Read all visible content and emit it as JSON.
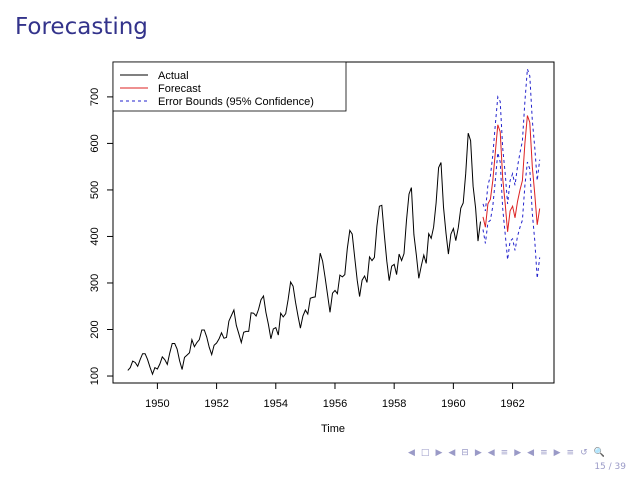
{
  "slide": {
    "title": "Forecasting",
    "page_number": "15 / 39"
  },
  "navigation": {
    "icons": [
      "◀",
      "□",
      "▶",
      "◀",
      "⊟",
      "▶",
      "◀",
      "≡",
      "▶",
      "◀",
      "≡",
      "▶",
      "≡",
      "↺",
      "🔍"
    ]
  },
  "colors": {
    "title": "#33338b",
    "actual": "#000000",
    "forecast": "#dd2222",
    "bounds": "#2222cc",
    "navigation": "#9a9ac7"
  },
  "chart_data": {
    "type": "line",
    "xlabel": "Time",
    "ylabel": "",
    "x_ticks": [
      1950,
      1952,
      1954,
      1956,
      1958,
      1960,
      1962
    ],
    "y_ticks": [
      100,
      200,
      300,
      400,
      500,
      600,
      700
    ],
    "xlim": [
      1948.5,
      1963.4
    ],
    "ylim": [
      85,
      775
    ],
    "legend_position": "top-left",
    "legend": [
      "Actual",
      "Forecast",
      "Error Bounds (95% Confidence)"
    ],
    "actual": {
      "name": "Actual",
      "start": 1949.0,
      "step": 0.0833333,
      "values": [
        112,
        118,
        132,
        129,
        121,
        135,
        148,
        148,
        136,
        119,
        104,
        118,
        115,
        126,
        141,
        135,
        125,
        149,
        170,
        170,
        158,
        133,
        114,
        140,
        145,
        150,
        178,
        163,
        172,
        178,
        199,
        199,
        184,
        162,
        146,
        166,
        171,
        180,
        193,
        181,
        183,
        218,
        230,
        242,
        209,
        191,
        172,
        194,
        196,
        196,
        236,
        235,
        229,
        243,
        264,
        272,
        237,
        211,
        180,
        201,
        204,
        188,
        235,
        227,
        234,
        264,
        302,
        293,
        259,
        229,
        203,
        229,
        242,
        233,
        267,
        269,
        270,
        315,
        364,
        347,
        312,
        274,
        237,
        278,
        284,
        277,
        317,
        313,
        318,
        374,
        413,
        405,
        355,
        306,
        271,
        306,
        315,
        301,
        356,
        348,
        355,
        422,
        465,
        467,
        404,
        347,
        305,
        336,
        340,
        318,
        362,
        348,
        363,
        435,
        491,
        505,
        404,
        359,
        310,
        337,
        360,
        342,
        406,
        396,
        420,
        472,
        548,
        559,
        463,
        407,
        362,
        405,
        417,
        391,
        419,
        461,
        472,
        535,
        622,
        606,
        508,
        461,
        390,
        432
      ]
    },
    "forecast": {
      "name": "Forecast",
      "start": 1961.0,
      "step": 0.0833333,
      "values": [
        442,
        420,
        470,
        480,
        520,
        580,
        640,
        625,
        525,
        470,
        410,
        455,
        465,
        440,
        475,
        500,
        520,
        600,
        660,
        645,
        550,
        490,
        425,
        460
      ]
    },
    "upper_bound": {
      "name": "Error Bounds (95% Confidence)",
      "start": 1961.0,
      "step": 0.0833333,
      "values": [
        470,
        455,
        510,
        530,
        575,
        640,
        700,
        690,
        590,
        535,
        470,
        520,
        535,
        510,
        550,
        580,
        605,
        690,
        760,
        745,
        650,
        590,
        520,
        565
      ]
    },
    "lower_bound": {
      "name": "Error Bounds (95% Confidence)",
      "start": 1961.0,
      "step": 0.0833333,
      "values": [
        415,
        385,
        430,
        435,
        465,
        520,
        580,
        560,
        460,
        405,
        350,
        390,
        395,
        370,
        400,
        420,
        435,
        510,
        560,
        545,
        450,
        390,
        310,
        355
      ]
    }
  }
}
